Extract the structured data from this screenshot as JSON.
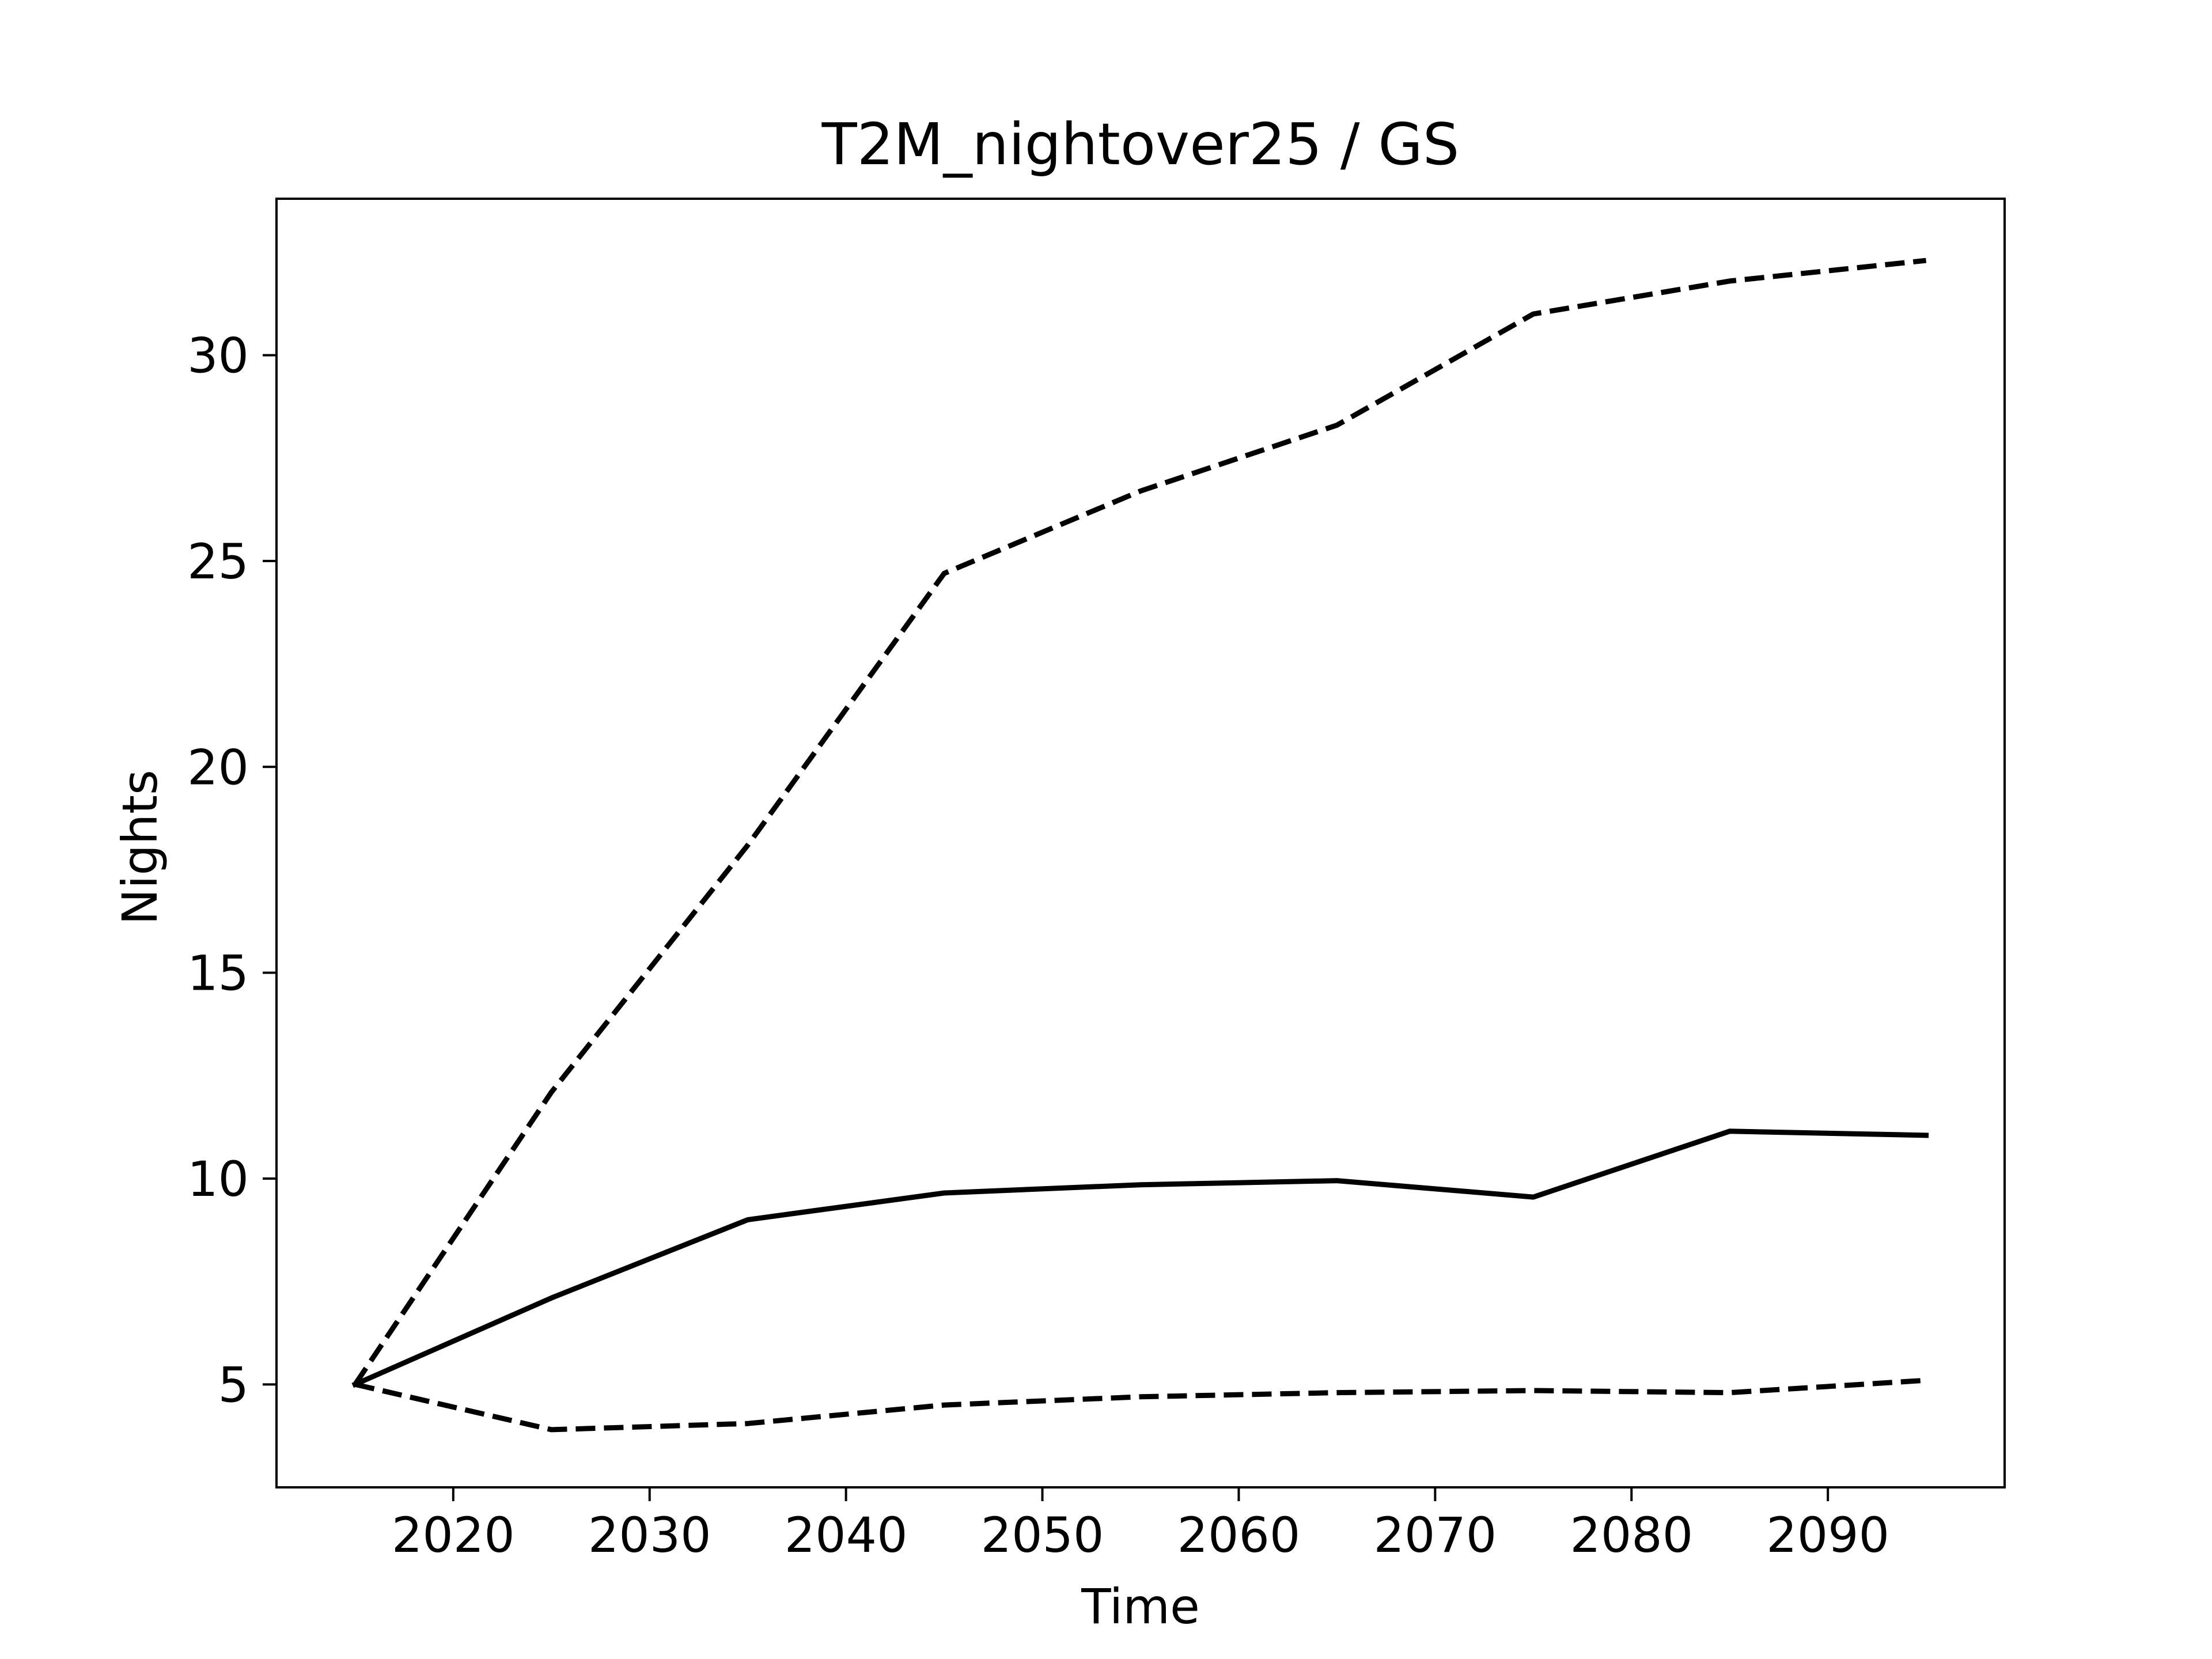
{
  "chart_data": {
    "type": "line",
    "title": "T2M_nightover25 / GS",
    "xlabel": "Time",
    "ylabel": "Nights",
    "xlim": [
      2011,
      2099
    ],
    "ylim": [
      2.5,
      33.8
    ],
    "xticks": [
      2020,
      2030,
      2040,
      2050,
      2060,
      2070,
      2080,
      2090
    ],
    "yticks": [
      5,
      10,
      15,
      20,
      25,
      30
    ],
    "grid": false,
    "x": [
      2015,
      2025,
      2035,
      2045,
      2055,
      2065,
      2075,
      2085,
      2095
    ],
    "series": [
      {
        "style": "dashed",
        "color": "#000000",
        "values": [
          5.0,
          12.1,
          18.1,
          24.7,
          26.7,
          28.3,
          31.0,
          31.8,
          32.3
        ]
      },
      {
        "style": "solid",
        "color": "#000000",
        "values": [
          5.0,
          7.1,
          9.0,
          9.65,
          9.85,
          9.95,
          9.55,
          11.15,
          11.05
        ]
      },
      {
        "style": "dashed",
        "color": "#000000",
        "values": [
          5.0,
          3.9,
          4.05,
          4.5,
          4.7,
          4.8,
          4.85,
          4.8,
          5.1
        ]
      }
    ]
  }
}
